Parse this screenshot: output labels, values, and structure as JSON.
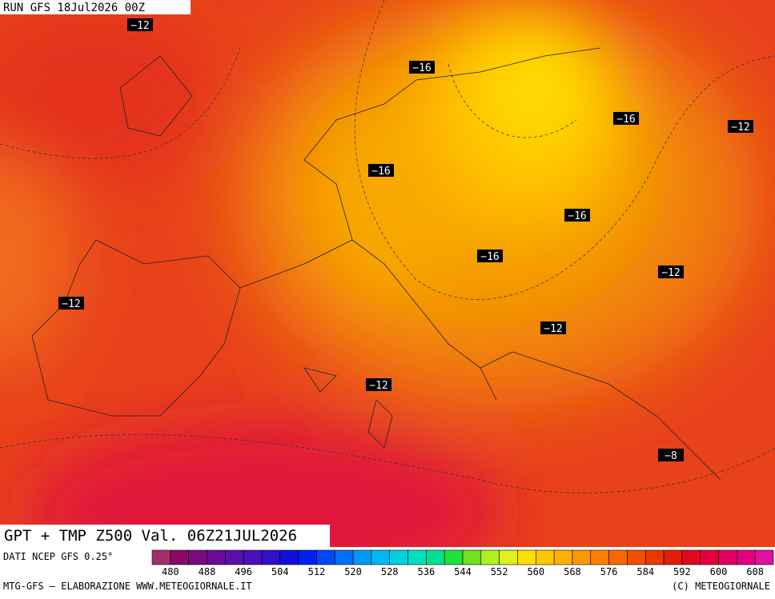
{
  "header": {
    "run": "RUN GFS 18Jul2026 00Z"
  },
  "map": {
    "isotherm_labels": [
      "−12",
      "−16",
      "−16",
      "−12",
      "−16",
      "−16",
      "−16",
      "−12",
      "−12",
      "−12",
      "−12",
      "−8"
    ]
  },
  "title": "GPT + TMP Z500 Val. 06Z21JUL2026",
  "colorbar": {
    "source": "DATI NCEP GFS 0.25°",
    "colors": [
      "#a0306a",
      "#8a0a6a",
      "#7a0a80",
      "#6a0a96",
      "#5a10a8",
      "#4a10b8",
      "#3010c8",
      "#1010d8",
      "#0020f0",
      "#0048f8",
      "#0070f8",
      "#0098f8",
      "#00b8f0",
      "#00d0e0",
      "#00e0c0",
      "#00e090",
      "#20e040",
      "#70e020",
      "#b0f020",
      "#e0f020",
      "#ffe000",
      "#ffc800",
      "#ffb000",
      "#ff9800",
      "#ff8000",
      "#f86800",
      "#f05000",
      "#e83800",
      "#e02000",
      "#e00820",
      "#e00040",
      "#e00060",
      "#e00080",
      "#e010a0"
    ],
    "ticks": [
      480,
      488,
      496,
      504,
      512,
      520,
      528,
      536,
      544,
      552,
      560,
      568,
      576,
      584,
      592,
      600,
      608
    ]
  },
  "footer": {
    "left": "MTG-GFS — ELABORAZIONE WWW.METEOGIORNALE.IT",
    "right": "(C) METEOGIORNALE"
  }
}
